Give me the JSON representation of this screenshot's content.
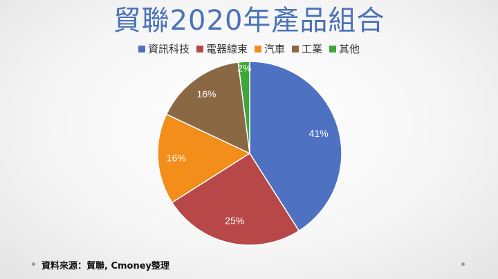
{
  "chart_data": {
    "type": "pie",
    "title": "貿聯2020年產品組合",
    "categories": [
      "資訊科技",
      "電器線束",
      "汽車",
      "工業",
      "其他"
    ],
    "values": [
      41,
      25,
      16,
      16,
      2
    ],
    "labels": [
      "41%",
      "25%",
      "16%",
      "16%",
      "2%"
    ],
    "colors": [
      "#4f71c2",
      "#b84848",
      "#f38e1a",
      "#8a6844",
      "#3ea73a"
    ],
    "legend_position": "top"
  },
  "footer": {
    "source": "資料來源：貿聯, Cmoney整理"
  }
}
